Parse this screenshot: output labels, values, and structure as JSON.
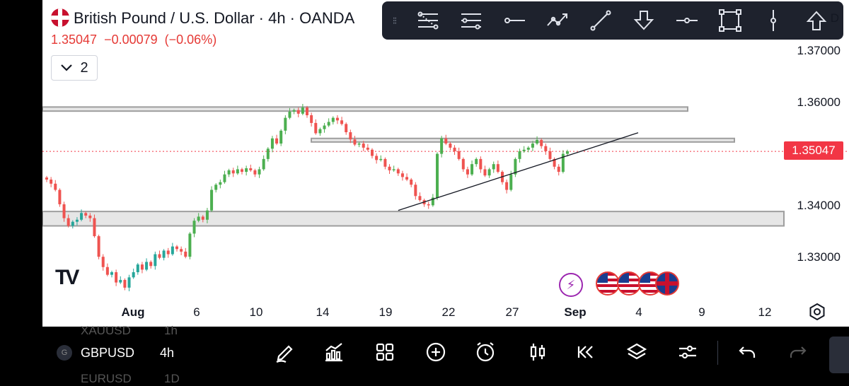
{
  "symbol": {
    "title": "British Pound / U.S. Dollar · 4h · OANDA",
    "last": "1.35047",
    "change": "−0.00079",
    "change_pct": "(−0.06%)",
    "indicators_count": "2"
  },
  "drawing_toolbar": {
    "tools": [
      "fib-retracement-icon",
      "fib-extension-icon",
      "horizontal-ray-icon",
      "path-icon",
      "trend-line-icon",
      "arrow-down-icon",
      "horizontal-line-icon",
      "rectangle-icon",
      "vertical-line-icon",
      "arrow-up-icon"
    ]
  },
  "price_axis": {
    "labels": [
      "1.37000",
      "1.36000",
      "1.35000",
      "1.34000",
      "1.33000"
    ],
    "current": "1.35047",
    "partial_top": "D"
  },
  "time_axis": {
    "labels": [
      "Aug",
      "6",
      "10",
      "14",
      "19",
      "22",
      "27",
      "Sep",
      "4",
      "9",
      "12"
    ]
  },
  "branding": {
    "logo": "TV"
  },
  "events": [
    "flash-event",
    "us-event",
    "us-event",
    "us-event",
    "uk-event"
  ],
  "bottom": {
    "ghost_top_symbol": "XAUUSD",
    "ghost_top_tf": "1h",
    "symbol": "GBPUSD",
    "badge": "G",
    "timeframe": "4h",
    "ghost_bottom_symbol": "EURUSD",
    "ghost_bottom_tf": "1D"
  },
  "colors": {
    "up": "#26a69a",
    "up_bright": "#4caf50",
    "down": "#ef5350",
    "current_line": "#f23645",
    "zone_fill": "#e6e6e6",
    "zone_border": "#9e9e9e"
  },
  "chart_data": {
    "type": "candlestick",
    "y_axis_range": [
      1.323,
      1.374
    ],
    "zones": [
      {
        "top": 1.3591,
        "bottom": 1.3583
      },
      {
        "top": 1.353,
        "bottom": 1.3523
      },
      {
        "top": 1.3388,
        "bottom": 1.336
      }
    ],
    "trendline": {
      "from": [
        "Aug 22",
        1.339
      ],
      "to": [
        "Sep 10",
        1.3541
      ]
    },
    "current_price": 1.35047,
    "closes": [
      1.345,
      1.3442,
      1.343,
      1.3402,
      1.3375,
      1.336,
      1.3368,
      1.3372,
      1.3385,
      1.338,
      1.3375,
      1.334,
      1.33,
      1.328,
      1.3265,
      1.327,
      1.325,
      1.3255,
      1.324,
      1.326,
      1.327,
      1.3285,
      1.3275,
      1.329,
      1.3282,
      1.3305,
      1.3298,
      1.3312,
      1.3305,
      1.332,
      1.3315,
      1.331,
      1.33,
      1.3345,
      1.337,
      1.3378,
      1.3372,
      1.339,
      1.343,
      1.344,
      1.3445,
      1.346,
      1.3468,
      1.3462,
      1.347,
      1.3465,
      1.3472,
      1.3468,
      1.346,
      1.347,
      1.349,
      1.351,
      1.353,
      1.352,
      1.3545,
      1.357,
      1.3582,
      1.3585,
      1.3578,
      1.359,
      1.3575,
      1.356,
      1.354,
      1.3548,
      1.3555,
      1.3562,
      1.357,
      1.3565,
      1.3558,
      1.3542,
      1.3528,
      1.3518,
      1.352,
      1.3512,
      1.3508,
      1.3496,
      1.3488,
      1.349,
      1.3475,
      1.3468,
      1.347,
      1.3462,
      1.3455,
      1.345,
      1.344,
      1.3418,
      1.341,
      1.3402,
      1.34,
      1.3415,
      1.35,
      1.353,
      1.352,
      1.3512,
      1.3505,
      1.349,
      1.347,
      1.346,
      1.348,
      1.349,
      1.347,
      1.3458,
      1.347,
      1.348,
      1.3465,
      1.3445,
      1.343,
      1.346,
      1.349,
      1.3505,
      1.3508,
      1.3512,
      1.352,
      1.3527,
      1.3515,
      1.3505,
      1.349,
      1.3475,
      1.3465,
      1.35,
      1.3505
    ]
  }
}
